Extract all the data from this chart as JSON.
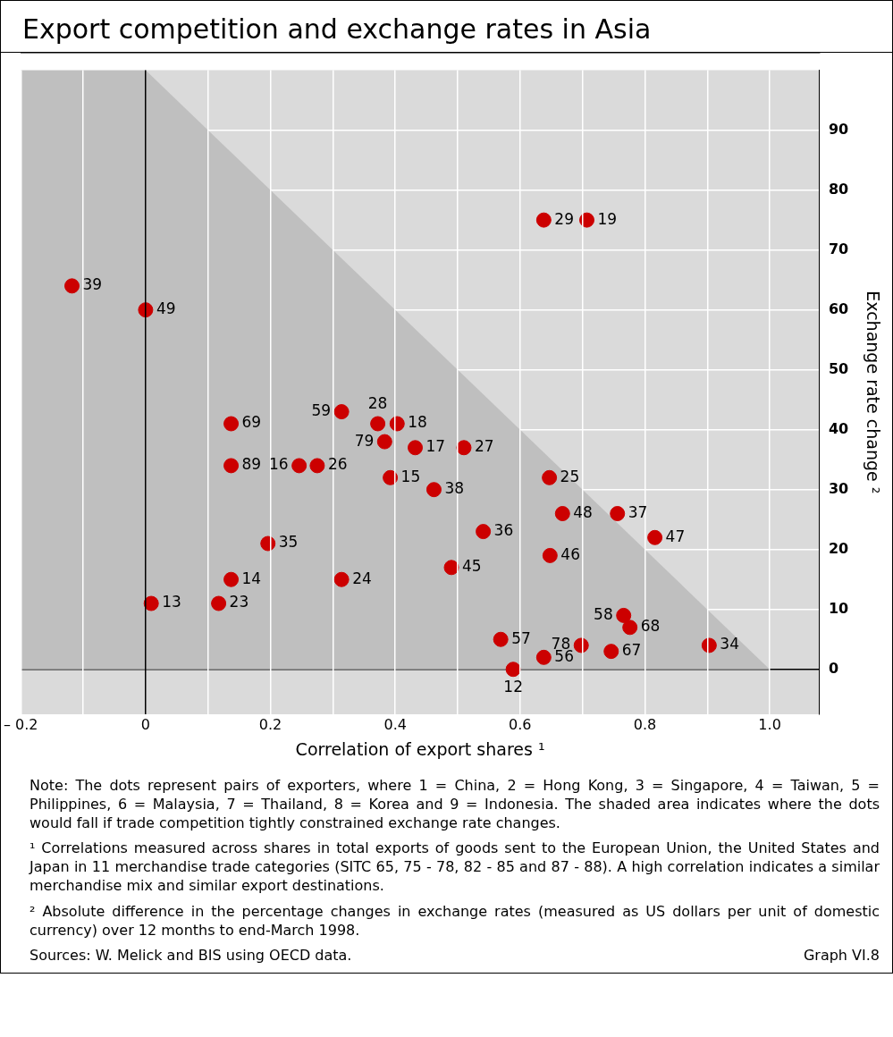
{
  "chart_data": {
    "type": "scatter",
    "title": "Export competition and exchange rates in Asia",
    "xlabel": "Correlation of export shares ¹",
    "ylabel": "Exchange rate change ²",
    "xlim": [
      -0.2,
      1.08
    ],
    "ylim": [
      -7.5,
      100
    ],
    "xticks": [
      {
        "value": -0.2,
        "label": "– 0.2"
      },
      {
        "value": -0.1,
        "label": null
      },
      0,
      {
        "value": 0.1,
        "label": null
      },
      0.2,
      {
        "value": 0.3,
        "label": null
      },
      0.4,
      {
        "value": 0.5,
        "label": null
      },
      0.6,
      {
        "value": 0.7,
        "label": null
      },
      0.8,
      {
        "value": 0.9,
        "label": null
      },
      {
        "value": 1,
        "label": "1.0"
      }
    ],
    "yticks": [
      0,
      10,
      20,
      30,
      40,
      50,
      60,
      70,
      80,
      90
    ],
    "grid": true,
    "legend": false,
    "series": [
      {
        "type": "area",
        "marker": "none",
        "color": "#bfbfbf",
        "x": [
          -0.2,
          0,
          1
        ],
        "values": [
          100,
          100,
          0
        ]
      },
      {
        "marker": "circle",
        "color": "#cc0000",
        "x": [
          -0.118,
          0,
          0.638,
          0.707,
          0.137,
          0.314,
          0.372,
          0.403,
          0.383,
          0.432,
          0.51,
          0.137,
          0.246,
          0.275,
          0.392,
          0.647,
          0.462,
          0.668,
          0.756,
          0.541,
          0.816,
          0.196,
          0.648,
          0.49,
          0.137,
          0.314,
          0.009,
          0.117,
          0.766,
          0.776,
          0.569,
          0.698,
          0.746,
          0.903,
          0.638,
          0.589
        ],
        "values": [
          64,
          60,
          75,
          75,
          41,
          43,
          41,
          41,
          38,
          37,
          37,
          34,
          34,
          34,
          32,
          32,
          30,
          26,
          26,
          23,
          22,
          21,
          19,
          17,
          15,
          15,
          11,
          11,
          9,
          7,
          5,
          4,
          3,
          4,
          2,
          0
        ]
      }
    ],
    "annotations": [
      {
        "text": "39",
        "x": -0.118,
        "y": 64
      },
      {
        "text": "49",
        "x": 0,
        "y": 60
      },
      {
        "text": "29",
        "x": 0.638,
        "y": 75
      },
      {
        "text": "19",
        "x": 0.707,
        "y": 75
      },
      {
        "text": "69",
        "x": 0.137,
        "y": 41
      },
      {
        "text": "59",
        "x": 0.314,
        "y": 43
      },
      {
        "text": "28",
        "x": 0.372,
        "y": 41
      },
      {
        "text": "18",
        "x": 0.403,
        "y": 41
      },
      {
        "text": "79",
        "x": 0.383,
        "y": 38
      },
      {
        "text": "17",
        "x": 0.432,
        "y": 37
      },
      {
        "text": "27",
        "x": 0.51,
        "y": 37
      },
      {
        "text": "89",
        "x": 0.137,
        "y": 34
      },
      {
        "text": "16",
        "x": 0.246,
        "y": 34
      },
      {
        "text": "26",
        "x": 0.275,
        "y": 34
      },
      {
        "text": "15",
        "x": 0.392,
        "y": 32
      },
      {
        "text": "25",
        "x": 0.647,
        "y": 32
      },
      {
        "text": "38",
        "x": 0.462,
        "y": 30
      },
      {
        "text": "48",
        "x": 0.668,
        "y": 26
      },
      {
        "text": "37",
        "x": 0.756,
        "y": 26
      },
      {
        "text": "36",
        "x": 0.541,
        "y": 23
      },
      {
        "text": "47",
        "x": 0.816,
        "y": 22
      },
      {
        "text": "35",
        "x": 0.196,
        "y": 21
      },
      {
        "text": "46",
        "x": 0.648,
        "y": 19
      },
      {
        "text": "45",
        "x": 0.49,
        "y": 17
      },
      {
        "text": "14",
        "x": 0.137,
        "y": 15
      },
      {
        "text": "24",
        "x": 0.314,
        "y": 15
      },
      {
        "text": "13",
        "x": 0.009,
        "y": 11
      },
      {
        "text": "23",
        "x": 0.117,
        "y": 11
      },
      {
        "text": "58",
        "x": 0.766,
        "y": 9
      },
      {
        "text": "68",
        "x": 0.776,
        "y": 7
      },
      {
        "text": "57",
        "x": 0.569,
        "y": 5
      },
      {
        "text": "78",
        "x": 0.698,
        "y": 4
      },
      {
        "text": "67",
        "x": 0.746,
        "y": 3
      },
      {
        "text": "34",
        "x": 0.903,
        "y": 4
      },
      {
        "text": "56",
        "x": 0.638,
        "y": 2
      },
      {
        "text": "12",
        "x": 0.589,
        "y": 0
      },
      "Note: The dots represent pairs of exporters, where 1 = China, 2 = Hong Kong, 3 = Singapore, 4 = Taiwan, 5 = Philippines, 6 = Malaysia, 7 = Thailand, 8 = Korea and 9 = Indonesia. The shaded area indicates where the dots would fall if trade competition tightly constrained exchange rate changes.",
      "¹ Correlations measured across shares in total exports of goods sent to the European Union, the United States and Japan in 11 merchandise trade categories (SITC 65, 75 - 78, 82 - 85 and 87 - 88). A high correlation indicates a similar merchandise mix and similar export destinations.",
      "² Absolute difference in the percentage changes in exchange rates (measured as US dollars per unit of domestic currency) over 12 months to end-March 1998.",
      "Sources: W. Melick and BIS using OECD data.",
      "Graph VI.8"
    ]
  }
}
